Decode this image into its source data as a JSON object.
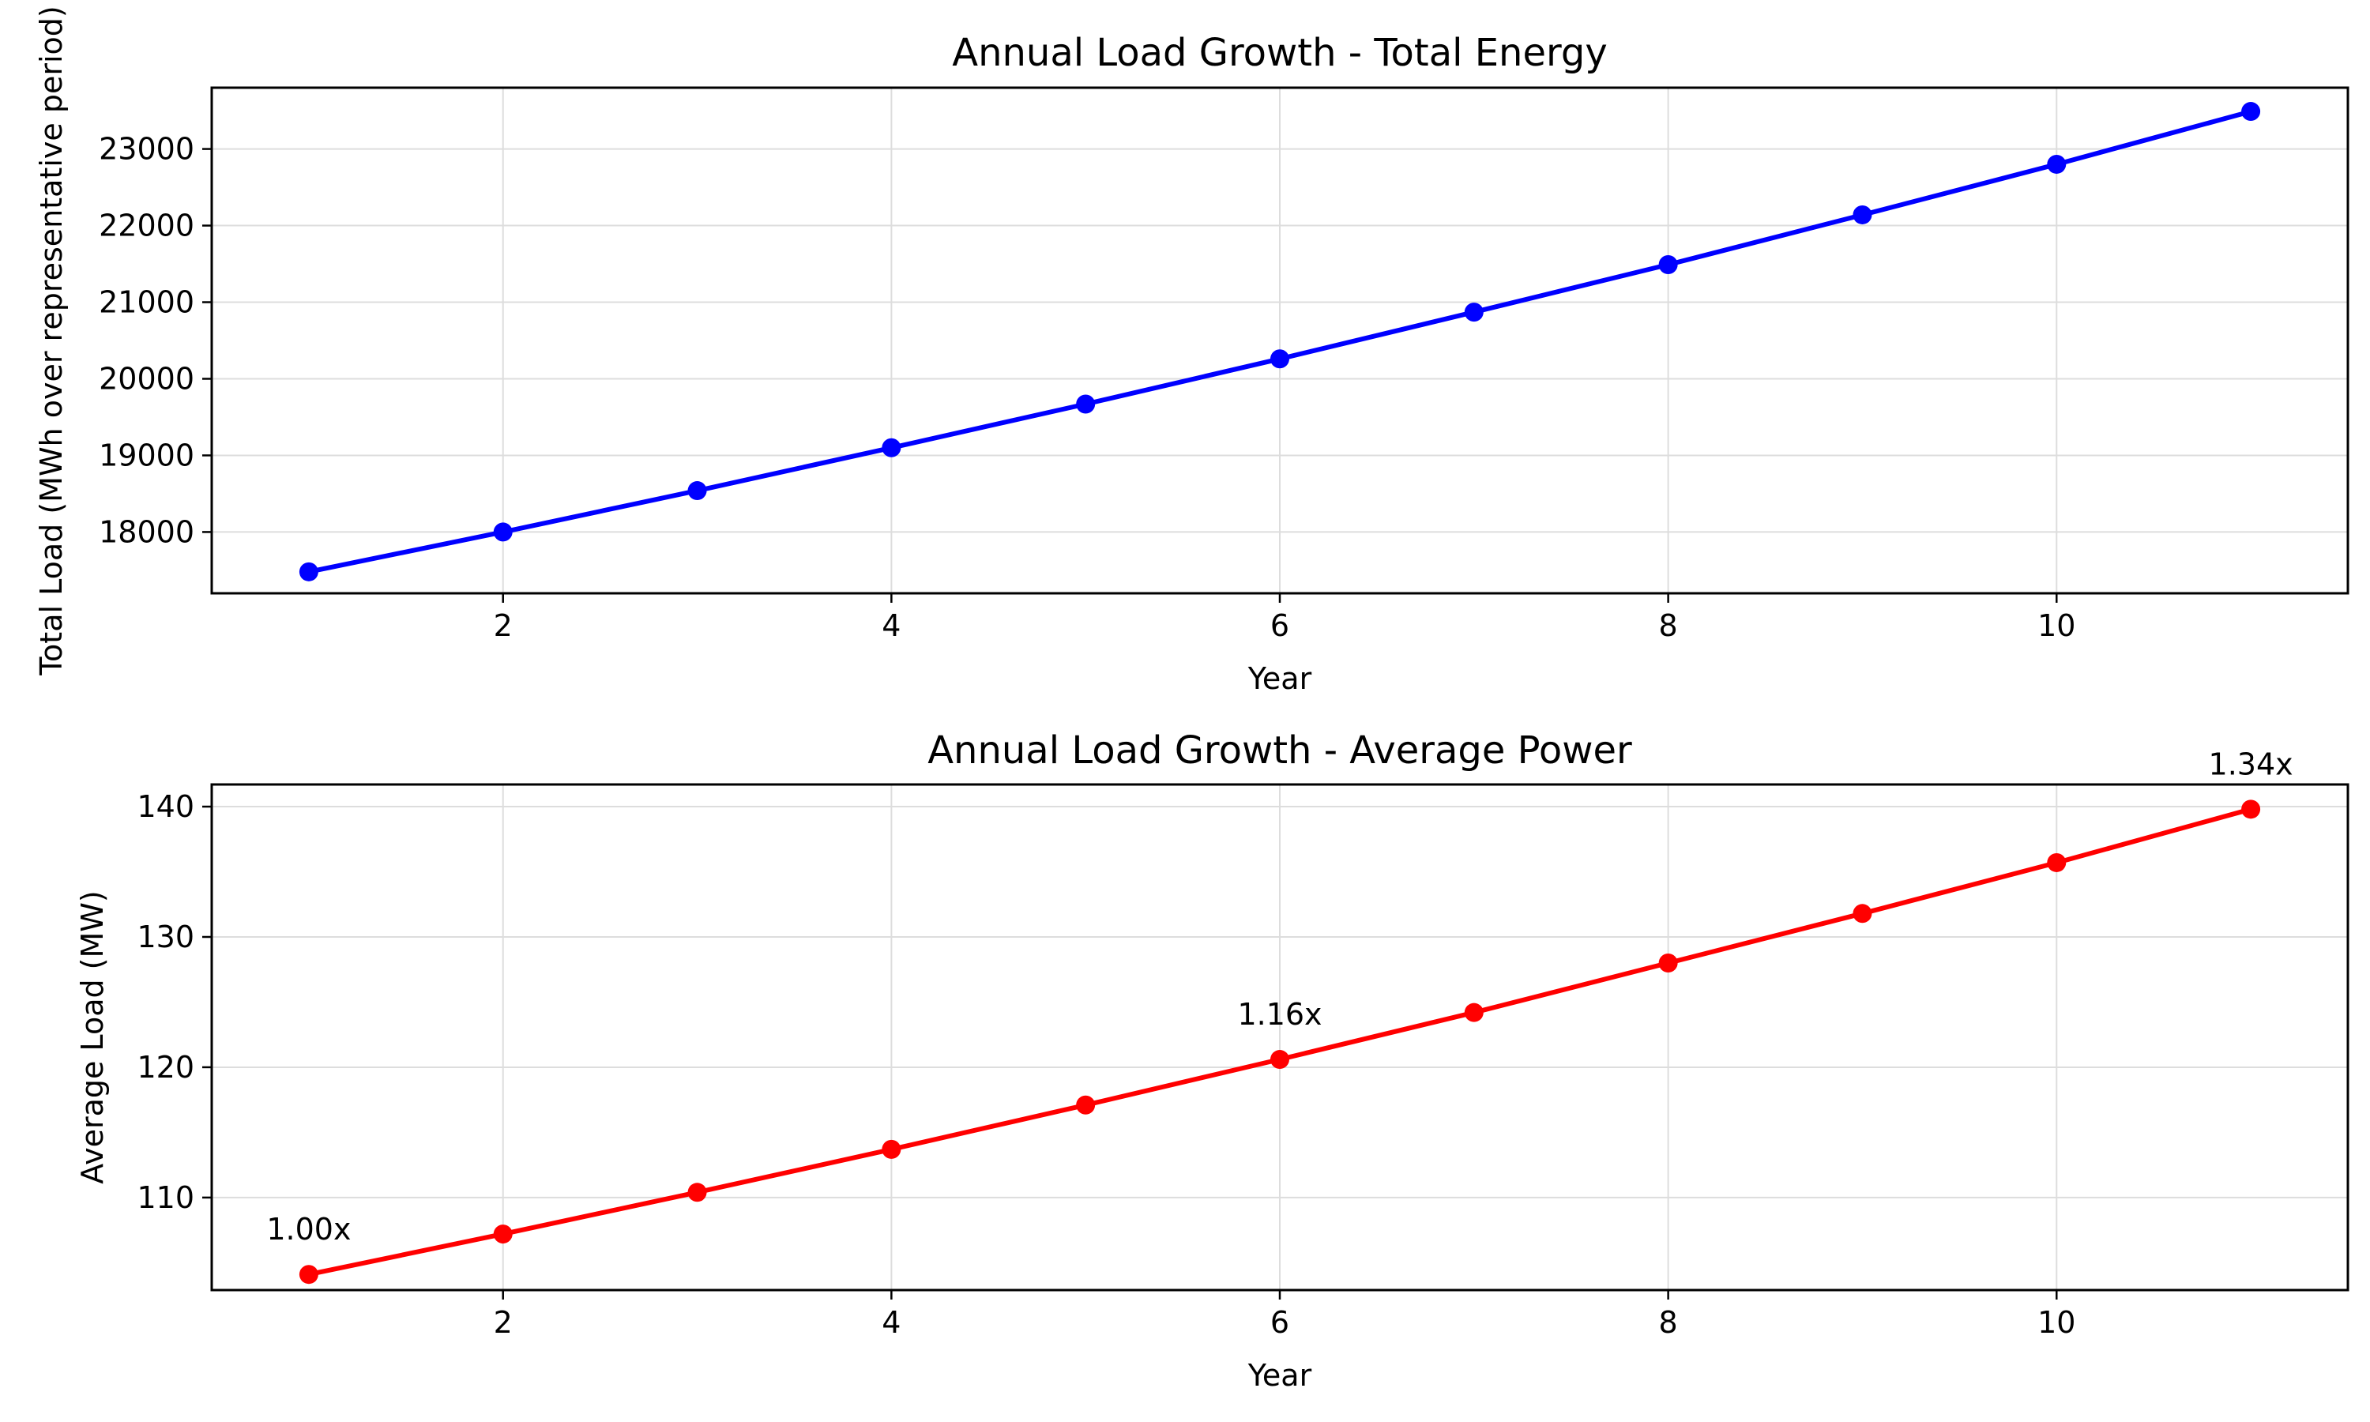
{
  "chart_data": [
    {
      "type": "line",
      "title": "Annual Load Growth - Total Energy",
      "xlabel": "Year",
      "ylabel": "Total Load (MWh over representative period)",
      "xlim": [
        0.5,
        11.5
      ],
      "ylim": [
        17200,
        23800
      ],
      "xticks": [
        2,
        4,
        6,
        8,
        10
      ],
      "yticks": [
        18000,
        19000,
        20000,
        21000,
        22000,
        23000
      ],
      "grid": true,
      "color": "#0000ff",
      "marker": "circle",
      "x": [
        1,
        2,
        3,
        4,
        5,
        6,
        7,
        8,
        9,
        10,
        11
      ],
      "values": [
        17480,
        18000,
        18540,
        19100,
        19670,
        20260,
        20870,
        21490,
        22140,
        22800,
        23490
      ],
      "annotations": []
    },
    {
      "type": "line",
      "title": "Annual Load Growth - Average Power",
      "xlabel": "Year",
      "ylabel": "Average Load (MW)",
      "xlim": [
        0.5,
        11.5
      ],
      "ylim": [
        102.9,
        141.7
      ],
      "xticks": [
        2,
        4,
        6,
        8,
        10
      ],
      "yticks": [
        110,
        120,
        130,
        140
      ],
      "grid": true,
      "color": "#ff0000",
      "marker": "circle",
      "x": [
        1,
        2,
        3,
        4,
        5,
        6,
        7,
        8,
        9,
        10,
        11
      ],
      "values": [
        104.1,
        107.2,
        110.4,
        113.7,
        117.1,
        120.6,
        124.2,
        128.0,
        131.8,
        135.7,
        139.8
      ],
      "annotations": [
        {
          "x": 1,
          "y": 104.1,
          "text": "1.00x"
        },
        {
          "x": 6,
          "y": 120.6,
          "text": "1.16x"
        },
        {
          "x": 11,
          "y": 139.8,
          "text": "1.34x"
        }
      ]
    }
  ]
}
